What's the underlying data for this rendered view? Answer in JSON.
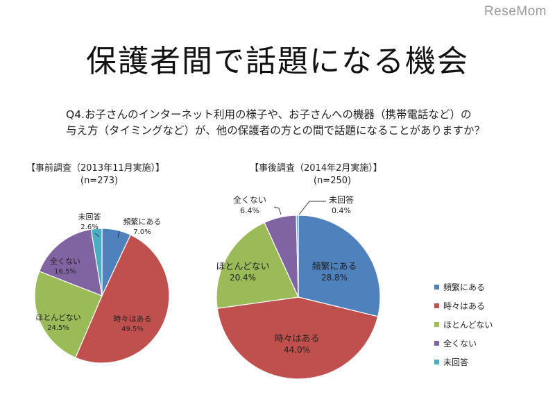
{
  "logo": "ReseMom",
  "title": "保護者間で話題になる機会",
  "question": [
    "Q4.お子さんのインターネット利用の様子や、お子さんへの機器（携帯電話など）の",
    "与え方（タイミングなど）が、他の保護者の方との間で話題になることがありますか？"
  ],
  "colors": {
    "頻繁にある": "#4f81bd",
    "時々はある": "#c0504d",
    "ほとんどない": "#9bbb59",
    "全くない": "#8064a2",
    "未回答": "#4bacc6"
  },
  "legend": [
    "頻繁にある",
    "時々はある",
    "ほとんどない",
    "全くない",
    "未回答"
  ],
  "chart_data": [
    {
      "type": "pie",
      "title": "【事前調査（2013年11月実施）】",
      "n": "(n=273)",
      "categories": [
        "頻繁にある",
        "時々はある",
        "ほとんどない",
        "全くない",
        "未回答"
      ],
      "values": [
        7.0,
        49.5,
        24.5,
        16.5,
        2.6
      ],
      "labels": [
        "7.0%",
        "49.5%",
        "24.5%",
        "16.5%",
        "2.6%"
      ]
    },
    {
      "type": "pie",
      "title": "【事後調査（2014年2月実施）】",
      "n": "(n=250)",
      "categories": [
        "頻繁にある",
        "時々はある",
        "ほとんどない",
        "全くない",
        "未回答"
      ],
      "values": [
        28.8,
        44.0,
        20.4,
        6.4,
        0.4
      ],
      "labels": [
        "28.8%",
        "44.0%",
        "20.4%",
        "6.4%",
        "0.4%"
      ]
    }
  ]
}
